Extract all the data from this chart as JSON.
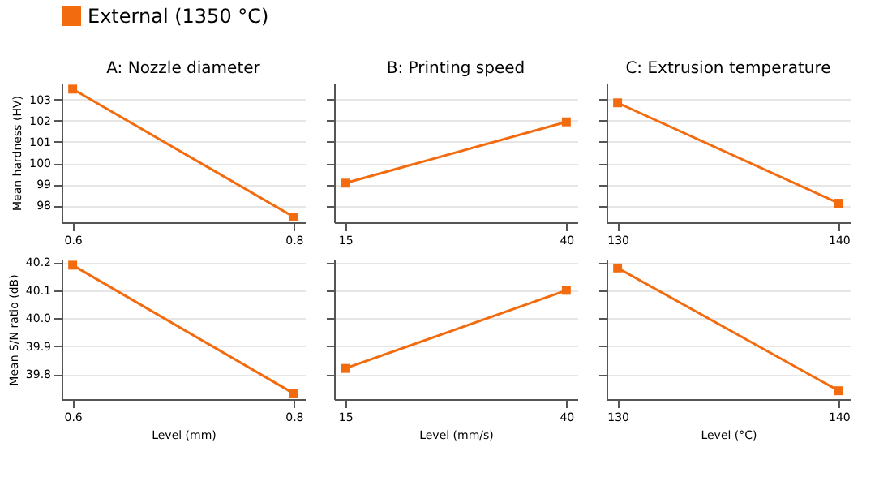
{
  "chart_data": [
    {
      "type": "line",
      "title": "A: Nozzle diameter",
      "ylabel": "Mean hardness (HV)",
      "x": [
        0.6,
        0.8
      ],
      "series": [
        {
          "name": "External (1350 °C)",
          "color": "#f26b0f",
          "values": [
            103.5,
            97.45
          ]
        }
      ],
      "xlim": [
        0.59,
        0.81
      ],
      "xticks": [
        0.6,
        0.8
      ],
      "ylim": [
        97.2,
        103.8
      ],
      "yticks": [
        98,
        99,
        100,
        101,
        102,
        103
      ],
      "grid": "y",
      "marker": "square",
      "line_style": "solid",
      "legend": "top"
    },
    {
      "type": "line",
      "title": "B: Printing speed",
      "x": [
        15,
        40
      ],
      "series": [
        {
          "color": "#f26b0f",
          "values": [
            99.05,
            101.95
          ]
        }
      ],
      "xlim": [
        13.75,
        41.25
      ],
      "xticks": [
        15,
        40
      ],
      "ylim": [
        97.2,
        103.8
      ],
      "yticks": [
        98,
        99,
        100,
        101,
        102,
        103
      ],
      "grid": "y",
      "marker": "square",
      "line_style": "solid",
      "tick_labels": "x"
    },
    {
      "type": "line",
      "title": "C: Extrusion temperature",
      "x": [
        130,
        140
      ],
      "series": [
        {
          "color": "#f26b0f",
          "values": [
            102.85,
            98.1
          ]
        }
      ],
      "xlim": [
        129.5,
        140.5
      ],
      "xticks": [
        130,
        140
      ],
      "ylim": [
        97.2,
        103.8
      ],
      "yticks": [
        98,
        99,
        100,
        101,
        102,
        103
      ],
      "grid": "y",
      "marker": "square",
      "line_style": "solid",
      "tick_labels": "x"
    },
    {
      "type": "line",
      "xlabel": "Level (mm)",
      "ylabel": "Mean S/N ratio (dB)",
      "x": [
        0.6,
        0.8
      ],
      "series": [
        {
          "color": "#f26b0f",
          "values": [
            40.19,
            39.73
          ]
        }
      ],
      "xlim": [
        0.59,
        0.81
      ],
      "xticks": [
        0.6,
        0.8
      ],
      "ylim": [
        39.71,
        40.21
      ],
      "yticks": [
        39.8,
        39.9,
        {
          "value": 40,
          "label": "40.0"
        },
        40.1,
        40.2
      ],
      "grid": "y",
      "marker": "square",
      "line_style": "solid"
    },
    {
      "type": "line",
      "xlabel": "Level (mm/s)",
      "x": [
        15,
        40
      ],
      "series": [
        {
          "color": "#f26b0f",
          "values": [
            39.82,
            40.1
          ]
        }
      ],
      "xlim": [
        13.75,
        41.25
      ],
      "xticks": [
        15,
        40
      ],
      "ylim": [
        39.71,
        40.21
      ],
      "yticks": [
        39.8,
        39.9,
        40,
        40.1,
        40.2
      ],
      "grid": "y",
      "marker": "square",
      "line_style": "solid",
      "tick_labels": "x"
    },
    {
      "type": "line",
      "xlabel": "Level (°C)",
      "x": [
        130,
        140
      ],
      "series": [
        {
          "color": "#f26b0f",
          "values": [
            40.18,
            39.74
          ]
        }
      ],
      "xlim": [
        129.5,
        140.5
      ],
      "xticks": [
        130,
        140
      ],
      "ylim": [
        39.71,
        40.21
      ],
      "yticks": [
        39.8,
        39.9,
        40,
        40.1,
        40.2
      ],
      "grid": "y",
      "marker": "square",
      "line_style": "solid",
      "tick_labels": "x"
    }
  ]
}
